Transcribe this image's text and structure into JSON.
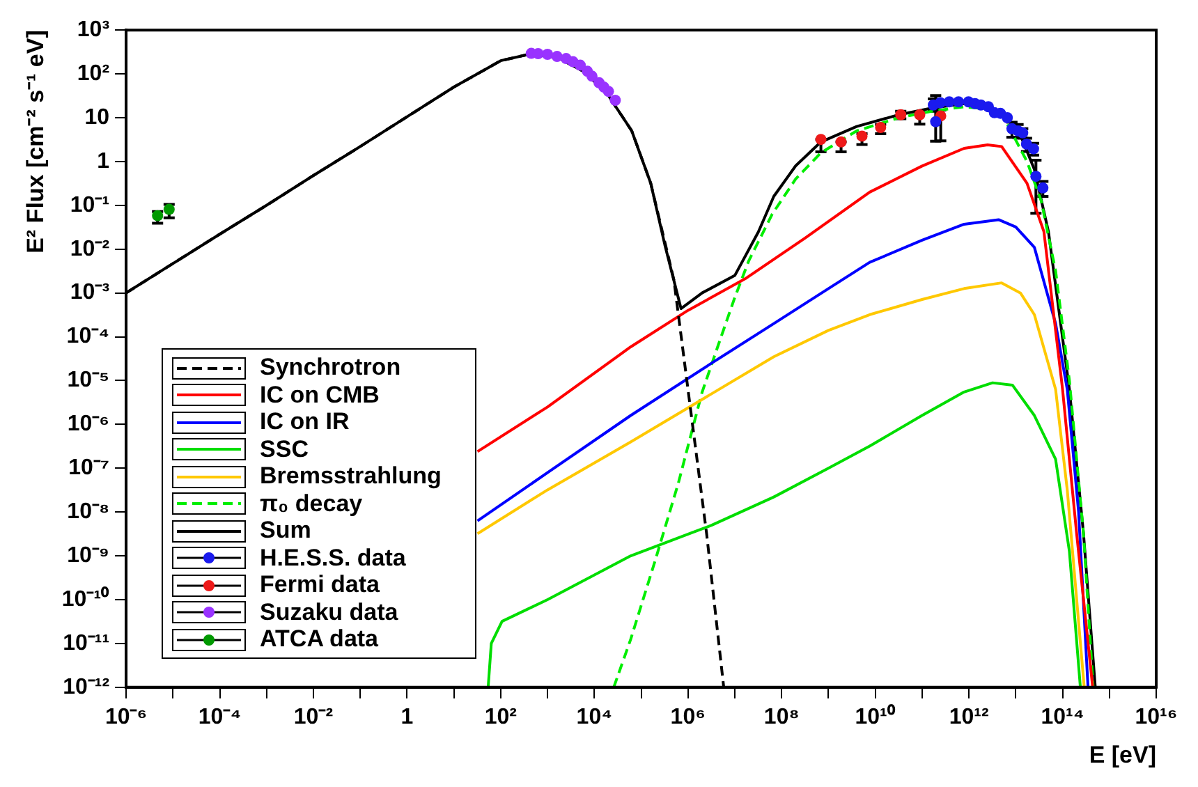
{
  "chart_data": {
    "type": "line",
    "xlabel": "E [eV]",
    "ylabel": "E² Flux [cm⁻² s⁻¹ eV]",
    "log": "xy",
    "legend": "bottom left",
    "xlim": [
      1e-06,
      1e+16
    ],
    "ylim": [
      1e-12,
      1000
    ],
    "xticks": [
      {
        "value": 1e-06,
        "label": "10⁻⁶"
      },
      {
        "value": 1e-05,
        "label": null
      },
      {
        "value": 0.0001,
        "label": "10⁻⁴"
      },
      {
        "value": 0.001,
        "label": null
      },
      {
        "value": 0.01,
        "label": "10⁻²"
      },
      {
        "value": 0.1,
        "label": null
      },
      1,
      {
        "value": 10,
        "label": null
      },
      {
        "value": 100,
        "label": "10²"
      },
      {
        "value": 1000,
        "label": null
      },
      {
        "value": 10000,
        "label": "10⁴"
      },
      {
        "value": 100000,
        "label": null
      },
      {
        "value": 1000000.0,
        "label": "10⁶"
      },
      {
        "value": 10000000.0,
        "label": null
      },
      {
        "value": 100000000.0,
        "label": "10⁸"
      },
      {
        "value": 1000000000.0,
        "label": null
      },
      {
        "value": 10000000000.0,
        "label": "10¹⁰"
      },
      {
        "value": 100000000000.0,
        "label": null
      },
      {
        "value": 1000000000000.0,
        "label": "10¹²"
      },
      {
        "value": 10000000000000.0,
        "label": null
      },
      {
        "value": 100000000000000.0,
        "label": "10¹⁴"
      },
      {
        "value": 1000000000000000.0,
        "label": null
      },
      {
        "value": 1e+16,
        "label": "10¹⁶"
      }
    ],
    "yticks": [
      {
        "value": 1e-12,
        "label": "10⁻¹²"
      },
      {
        "value": 1e-11,
        "label": "10⁻¹¹"
      },
      {
        "value": 1e-10,
        "label": "10⁻¹⁰"
      },
      {
        "value": 1e-09,
        "label": "10⁻⁹"
      },
      {
        "value": 1e-08,
        "label": "10⁻⁸"
      },
      {
        "value": 1e-07,
        "label": "10⁻⁷"
      },
      {
        "value": 1e-06,
        "label": "10⁻⁶"
      },
      {
        "value": 1e-05,
        "label": "10⁻⁵"
      },
      {
        "value": 0.0001,
        "label": "10⁻⁴"
      },
      {
        "value": 0.001,
        "label": "10⁻³"
      },
      {
        "value": 0.01,
        "label": "10⁻²"
      },
      {
        "value": 0.1,
        "label": "10⁻¹"
      },
      1,
      10,
      {
        "value": 100,
        "label": "10²"
      },
      {
        "value": 1000,
        "label": "10³"
      }
    ],
    "series": [
      {
        "name": "Synchrotron",
        "line_style": "dashed",
        "color": "#000000",
        "x": [
          1e-06,
          1e-05,
          0.0001,
          0.001,
          0.01,
          0.1,
          1,
          10,
          100,
          400,
          1600,
          6300,
          20000,
          63000,
          160000,
          500000,
          1000000.0,
          2500000.0,
          5800000.0
        ],
        "values": [
          0.001,
          0.0047,
          0.022,
          0.1,
          0.48,
          2.2,
          10.5,
          50,
          200,
          280,
          240,
          110,
          32,
          5,
          0.32,
          0.002,
          6.3e-06,
          3.2e-09,
          1e-12
        ]
      },
      {
        "name": "IC on CMB",
        "line_style": "solid",
        "color": "#ff0000",
        "x": [
          32,
          1000,
          60000,
          1000000.0,
          16600000.0,
          320000000.0,
          7600000000.0,
          100000000000.0,
          790000000000.0,
          2500000000000.0,
          5000000000000.0,
          17400000000000.0,
          40000000000000.0,
          100000000000000.0,
          200000000000000.0,
          440000000000000.0
        ],
        "values": [
          2.4e-07,
          2.5e-06,
          5.9e-05,
          0.0004,
          0.0021,
          0.018,
          0.2,
          0.79,
          2,
          2.4,
          2.2,
          0.32,
          0.025,
          6.3e-06,
          3.2e-09,
          1e-12
        ]
      },
      {
        "name": "IC on IR",
        "line_style": "solid",
        "color": "#0000ff",
        "x": [
          32,
          1000,
          60000,
          3200000.0,
          68000000.0,
          1000000000.0,
          7600000000.0,
          100000000000.0,
          790000000000.0,
          4300000000000.0,
          10000000000000.0,
          25000000000000.0,
          71000000000000.0,
          126000000000000.0,
          220000000000000.0,
          350000000000000.0
        ],
        "values": [
          6.3e-09,
          7.9e-08,
          1.6e-06,
          2.5e-05,
          0.0002,
          0.00126,
          0.005,
          0.016,
          0.037,
          0.047,
          0.032,
          0.011,
          0.0002,
          6.3e-06,
          1e-08,
          1e-12
        ]
      },
      {
        "name": "SSC",
        "line_style": "solid",
        "color": "#00dd00",
        "x": [
          54,
          63,
          107,
          1000,
          60000,
          3200000.0,
          68000000.0,
          1000000000.0,
          7600000000.0,
          100000000000.0,
          790000000000.0,
          3200000000000.0,
          8500000000000.0,
          25000000000000.0,
          71000000000000.0,
          140000000000000.0,
          240000000000000.0
        ],
        "values": [
          1e-12,
          1e-11,
          3.2e-11,
          1e-10,
          1e-09,
          5e-09,
          2.2e-08,
          1e-07,
          3.2e-07,
          1.6e-06,
          5.5e-06,
          8.9e-06,
          7.9e-06,
          1.6e-06,
          1.6e-07,
          1.26e-09,
          1e-12
        ]
      },
      {
        "name": "Bremsstrahlung",
        "line_style": "solid",
        "color": "#ffc800",
        "x": [
          32,
          1000,
          60000,
          3200000.0,
          68000000.0,
          1000000000.0,
          7600000000.0,
          100000000000.0,
          790000000000.0,
          5000000000000.0,
          12600000000000.0,
          25000000000000.0,
          71000000000000.0,
          126000000000000.0,
          290000000000000.0
        ],
        "values": [
          3.2e-09,
          3.2e-08,
          4e-07,
          5e-06,
          3.5e-05,
          0.00014,
          0.00032,
          0.00071,
          0.00126,
          0.0017,
          0.001,
          0.00032,
          6.3e-06,
          3.2e-08,
          1e-12
        ]
      },
      {
        "name": "π₀ decay",
        "line_style": "dashed",
        "color": "#00ee00",
        "x": [
          26000,
          60000,
          200000.0,
          620000.0,
          2000000.0,
          4000000.0,
          10000000.0,
          20000000.0,
          63000000.0,
          200000000.0,
          690000000.0,
          4000000000.0,
          32000000000.0,
          160000000000.0,
          790000000000.0,
          2500000000000.0,
          5000000000000.0,
          17400000000000.0,
          35000000000000.0,
          71000000000000.0,
          140000000000000.0,
          280000000000000.0,
          450000000000000.0
        ],
        "values": [
          1e-12,
          1.26e-11,
          7.9e-10,
          4.5e-08,
          5.4e-06,
          4.7e-05,
          0.00079,
          0.0055,
          0.063,
          0.4,
          1.58,
          5,
          10,
          14,
          17.8,
          15.8,
          12.6,
          1,
          0.126,
          0.0032,
          1e-05,
          3.2e-09,
          1e-12
        ]
      },
      {
        "name": "Sum",
        "line_style": "solid",
        "color": "#000000",
        "x": [
          1e-06,
          1e-05,
          0.0001,
          0.001,
          0.01,
          0.1,
          1,
          10,
          100,
          400,
          1600,
          6300,
          20000,
          63000,
          160000,
          320000,
          710000,
          2000000.0,
          10000000.0,
          32000000.0,
          68000000.0,
          200000000.0,
          690000000.0,
          4000000000.0,
          32000000000.0,
          160000000000.0,
          790000000000.0,
          2500000000000.0,
          5000000000000.0,
          12600000000000.0,
          25000000000000.0,
          50000000000000.0,
          140000000000000.0,
          280000000000000.0,
          500000000000000.0
        ],
        "values": [
          0.001,
          0.0047,
          0.022,
          0.1,
          0.48,
          2.2,
          10.5,
          50,
          200,
          280,
          240,
          110,
          32,
          5,
          0.32,
          0.0126,
          0.00044,
          0.001,
          0.0025,
          0.025,
          0.16,
          0.8,
          2.8,
          6.3,
          11.7,
          16.6,
          21,
          17.8,
          13.5,
          4,
          0.66,
          0.025,
          6.3e-06,
          3.2e-09,
          1e-12
        ]
      },
      {
        "name": "H.E.S.S. data",
        "type": "scatter",
        "marker": "circle",
        "color": "#1a1aee",
        "x": [
          174000000000.0,
          195000000000.0,
          245000000000.0,
          380000000000.0,
          600000000000.0,
          980000000000.0,
          1350000000000.0,
          1800000000000.0,
          2600000000000.0,
          3500000000000.0,
          4700000000000.0,
          6600000000000.0,
          8300000000000.0,
          11200000000000.0,
          14100000000000.0,
          17000000000000.0,
          24000000000000.0,
          27000000000000.0,
          38000000000000.0
        ],
        "values": [
          19.5,
          8.1,
          22,
          23,
          23,
          23,
          21,
          19.5,
          17.8,
          13,
          12.6,
          10,
          5.6,
          5,
          4.5,
          2.5,
          1.95,
          0.46,
          0.25
        ],
        "errors": [
          [
            14,
            27
          ],
          [
            2.9,
            32
          ],
          null,
          null,
          null,
          null,
          null,
          null,
          null,
          null,
          null,
          null,
          [
            3.6,
            7.9
          ],
          [
            3.5,
            7
          ],
          [
            3.4,
            5.6
          ],
          [
            1.7,
            3.4
          ],
          [
            1.4,
            2.6
          ],
          [
            0.066,
            1.07
          ],
          [
            0.16,
            0.35
          ]
        ]
      },
      {
        "name": "Fermi data",
        "type": "scatter",
        "marker": "circle",
        "color": "#ee1a1a",
        "x": [
          690000000.0,
          1860000000.0,
          5200000000.0,
          13000000000.0,
          35000000000.0,
          89000000000.0,
          250000000000.0
        ],
        "values": [
          3.2,
          2.8,
          3.8,
          6,
          11.7,
          11.7,
          11
        ],
        "errors": [
          [
            1.66,
            3.2
          ],
          [
            1.66,
            2.8
          ],
          [
            2.45,
            4.3
          ],
          [
            4.3,
            7
          ],
          [
            9.5,
            14
          ],
          [
            7.1,
            13.5
          ],
          [
            2.95,
            15
          ]
        ]
      },
      {
        "name": "Suzaku data",
        "type": "scatter",
        "marker": "circle",
        "color": "#9933ff",
        "x": [
          450,
          630,
          1000,
          1600,
          2500,
          3500,
          5000,
          7100,
          8900,
          12600,
          16000,
          20000,
          28000
        ],
        "values": [
          295,
          290,
          280,
          250,
          224,
          190,
          158,
          115,
          89,
          63,
          50,
          40,
          25
        ]
      },
      {
        "name": "ATCA data",
        "type": "scatter",
        "marker": "circle",
        "color": "#009900",
        "x": [
          4.7e-06,
          8.3e-06
        ],
        "values": [
          0.058,
          0.081
        ],
        "errors": [
          [
            0.039,
            0.072
          ],
          [
            0.052,
            0.105
          ]
        ]
      }
    ]
  }
}
